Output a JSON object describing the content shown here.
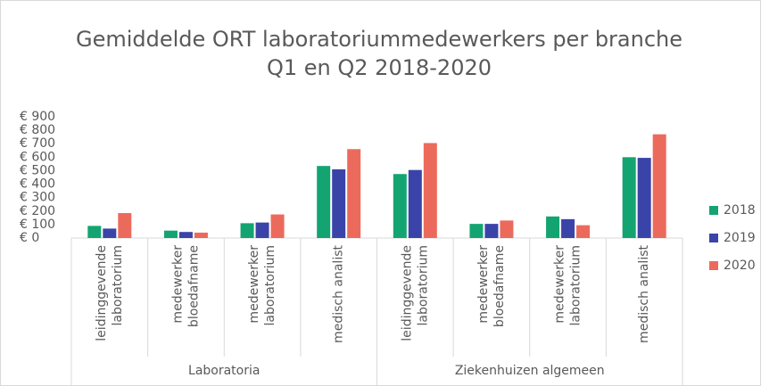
{
  "chart_data": {
    "type": "bar",
    "title": [
      "Gemiddelde ORT laboratoriummedewerkers per branche",
      "Q1 en Q2 2018-2020"
    ],
    "groups": [
      {
        "name": "Laboratoria",
        "categories": [
          [
            "leidinggevende",
            "laboratorium"
          ],
          [
            "medewerker",
            "bloedafname"
          ],
          [
            "medewerker",
            "laboratorium"
          ],
          [
            "medisch analist"
          ]
        ]
      },
      {
        "name": "Ziekenhuizen algemeen",
        "categories": [
          [
            "leidinggevende",
            "laboratorium"
          ],
          [
            "medewerker",
            "bloedafname"
          ],
          [
            "medewerker",
            "laboratorium"
          ],
          [
            "medisch analist"
          ]
        ]
      }
    ],
    "series": [
      {
        "name": "2018",
        "color": "#13a471",
        "values": [
          90,
          55,
          110,
          535,
          475,
          105,
          160,
          600
        ]
      },
      {
        "name": "2019",
        "color": "#3a44a8",
        "values": [
          70,
          45,
          115,
          510,
          505,
          105,
          140,
          595
        ]
      },
      {
        "name": "2020",
        "color": "#ec6a5c",
        "values": [
          185,
          40,
          175,
          660,
          705,
          130,
          95,
          770
        ]
      }
    ],
    "ylim": [
      0,
      900
    ],
    "yticks": [
      {
        "value": 0,
        "label": "€ 0"
      },
      {
        "value": 100,
        "label": "€ 100"
      },
      {
        "value": 200,
        "label": "€ 200"
      },
      {
        "value": 300,
        "label": "€ 300"
      },
      {
        "value": 400,
        "label": "€ 400"
      },
      {
        "value": 500,
        "label": "€ 500"
      },
      {
        "value": 600,
        "label": "€ 600"
      },
      {
        "value": 700,
        "label": "€ 700"
      },
      {
        "value": 800,
        "label": "€ 800"
      },
      {
        "value": 900,
        "label": "€ 900"
      }
    ],
    "legend": "right"
  }
}
